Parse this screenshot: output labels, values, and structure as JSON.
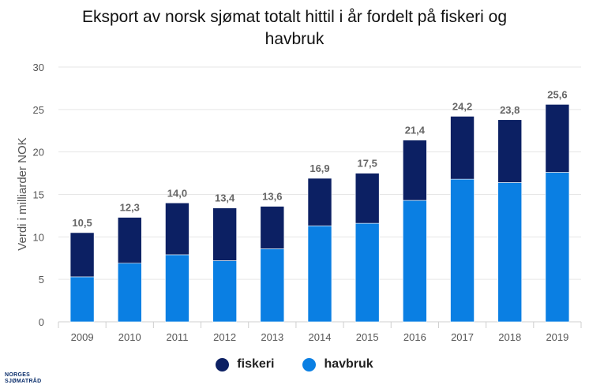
{
  "chart_data": {
    "type": "bar",
    "stacked": true,
    "title_lines": [
      "Eksport av norsk sjømat totalt hittil i år fordelt på fiskeri og",
      "havbruk"
    ],
    "ylabel": "Verdi i milliarder NOK",
    "xlabel": "",
    "ylim": [
      0,
      30
    ],
    "yticks": [
      0,
      5,
      10,
      15,
      20,
      25,
      30
    ],
    "grid": true,
    "legend_position": "bottom",
    "categories": [
      "2009",
      "2010",
      "2011",
      "2012",
      "2013",
      "2014",
      "2015",
      "2016",
      "2017",
      "2018",
      "2019"
    ],
    "series": [
      {
        "name": "havbruk",
        "color": "#0a7fe3",
        "values": [
          5.3,
          6.9,
          7.9,
          7.2,
          8.6,
          11.3,
          11.6,
          14.3,
          16.8,
          16.4,
          17.6
        ]
      },
      {
        "name": "fiskeri",
        "color": "#0c2063",
        "values": [
          5.2,
          5.4,
          6.1,
          6.2,
          5.0,
          5.6,
          5.9,
          7.1,
          7.4,
          7.4,
          8.0
        ]
      }
    ],
    "total_labels": [
      "10,5",
      "12,3",
      "14,0",
      "13,4",
      "13,6",
      "16,9",
      "17,5",
      "21,4",
      "24,2",
      "23,8",
      "25,6"
    ]
  },
  "legend": [
    {
      "name": "fiskeri",
      "color": "#0c2063"
    },
    {
      "name": "havbruk",
      "color": "#0a7fe3"
    }
  ],
  "logo": {
    "line1": "NORGES",
    "line2": "SJØMATRÅD"
  }
}
